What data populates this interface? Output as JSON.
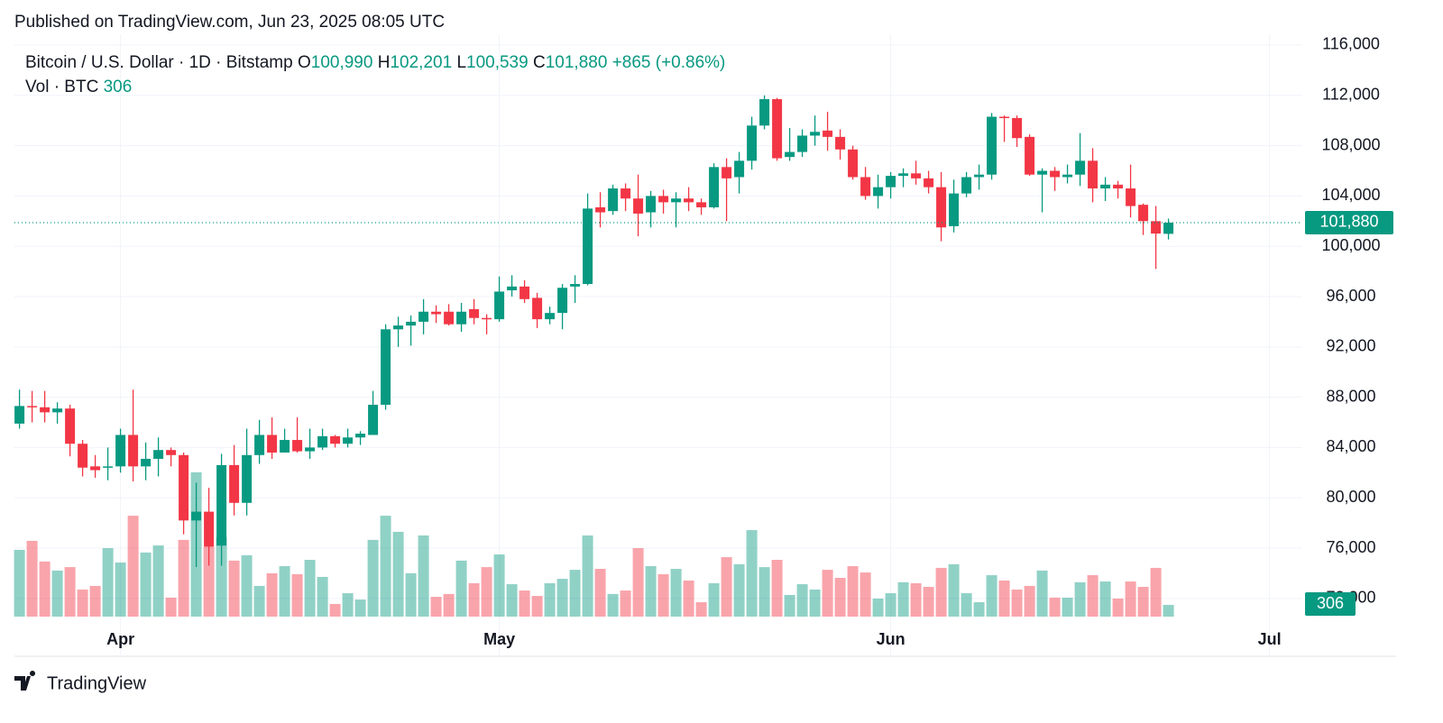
{
  "header": {
    "published": "Published on TradingView.com, Jun 23, 2025 08:05 UTC",
    "brand": "TradingView"
  },
  "chart_data": {
    "type": "candlestick",
    "title": "Bitcoin / U.S. Dollar · 1D · Bitstamp",
    "open_prefix": "O",
    "high_prefix": "H",
    "low_prefix": "L",
    "close_prefix": "C",
    "last_labels": {
      "open": "100,990",
      "high": "102,201",
      "low": "100,539",
      "close": "101,880",
      "change": "+865 (+0.86%)"
    },
    "volume_title": "Vol · BTC",
    "volume_label": "306",
    "up_color": "#089981",
    "down_color": "#f23645",
    "open": [
      85900,
      87300,
      87200,
      86800,
      87100,
      84300,
      82500,
      82400,
      82500,
      85000,
      82500,
      83100,
      83800,
      83400,
      78200,
      78900,
      76200,
      82600,
      79600,
      83400,
      85000,
      83600,
      84600,
      83700,
      84000,
      84900,
      84300,
      84800,
      85000,
      87400,
      93400,
      93700,
      94000,
      94800,
      94800,
      93800,
      95000,
      94300,
      94200,
      96500,
      96800,
      95900,
      94200,
      94700,
      96800,
      97000,
      103100,
      102800,
      104600,
      103800,
      102700,
      104000,
      103500,
      103800,
      103500,
      103100,
      106300,
      105500,
      106800,
      109600,
      111700,
      107100,
      107500,
      108800,
      109200,
      108700,
      107700,
      105500,
      104000,
      104700,
      105600,
      105800,
      105400,
      104700,
      101600,
      104200,
      105500,
      105700,
      110300,
      110200,
      108700,
      105700,
      106000,
      105500,
      105700,
      106800,
      104600,
      104900,
      104600,
      103300,
      102000,
      100990
    ],
    "high": [
      88600,
      88500,
      88500,
      87600,
      87400,
      84600,
      83400,
      84000,
      85500,
      88600,
      84400,
      84800,
      84000,
      83600,
      81200,
      80800,
      83500,
      84200,
      85500,
      86200,
      86400,
      85500,
      86400,
      85500,
      85500,
      85000,
      85500,
      85300,
      88500,
      93800,
      94400,
      94500,
      95800,
      95300,
      95400,
      95500,
      95800,
      94600,
      97600,
      97700,
      97300,
      96300,
      95200,
      97000,
      97700,
      104200,
      104300,
      104900,
      105000,
      105700,
      104400,
      104500,
      104300,
      104700,
      103800,
      106600,
      107000,
      107500,
      110300,
      112000,
      111800,
      109400,
      109300,
      110400,
      110700,
      109300,
      108000,
      106300,
      105700,
      105900,
      106200,
      106800,
      106000,
      105900,
      105300,
      105900,
      106500,
      110600,
      110400,
      110400,
      108900,
      106200,
      106300,
      106500,
      109000,
      107800,
      105500,
      105200,
      106500,
      103400,
      103200,
      102201
    ],
    "low": [
      85500,
      86000,
      86000,
      85900,
      83300,
      81700,
      81600,
      81400,
      82000,
      81300,
      81400,
      81700,
      82500,
      77100,
      74500,
      74600,
      74600,
      78600,
      78600,
      82700,
      83100,
      83700,
      83600,
      83100,
      83800,
      84000,
      84000,
      84200,
      85000,
      87000,
      92000,
      92100,
      93000,
      93900,
      93700,
      93200,
      93800,
      93000,
      94000,
      96000,
      95500,
      93500,
      93800,
      93400,
      95500,
      96900,
      101500,
      102500,
      102800,
      100800,
      101500,
      102600,
      101500,
      102800,
      102500,
      103000,
      102000,
      104200,
      106100,
      109300,
      106800,
      106800,
      107100,
      108000,
      107600,
      106900,
      105300,
      103700,
      103000,
      103800,
      104700,
      104900,
      104200,
      100400,
      101100,
      103900,
      104500,
      105300,
      108300,
      107900,
      105600,
      102700,
      104400,
      105000,
      104800,
      103500,
      103600,
      103800,
      102300,
      100900,
      98200,
      100539
    ],
    "close": [
      87300,
      87200,
      86800,
      87100,
      84300,
      82400,
      82200,
      82500,
      85000,
      82500,
      83100,
      83800,
      83400,
      78200,
      78900,
      76100,
      82600,
      79600,
      83400,
      85000,
      83600,
      84600,
      83700,
      84000,
      84900,
      84300,
      84800,
      85100,
      87400,
      93400,
      93700,
      94000,
      94800,
      94600,
      93800,
      94800,
      94300,
      94200,
      96400,
      96800,
      95800,
      94200,
      94700,
      96700,
      97000,
      103000,
      102700,
      104600,
      103800,
      102600,
      104000,
      103500,
      103800,
      103500,
      103100,
      106300,
      105400,
      106800,
      109600,
      111700,
      107000,
      107500,
      108800,
      109100,
      108700,
      107700,
      105500,
      104000,
      104700,
      105600,
      105800,
      105400,
      104700,
      101500,
      104200,
      105500,
      105700,
      110300,
      110200,
      108600,
      105700,
      106000,
      105500,
      105700,
      106800,
      104600,
      104900,
      104600,
      103200,
      102000,
      101015,
      101880
    ],
    "volume": [
      1740,
      1975,
      1435,
      1200,
      1290,
      705,
      800,
      1785,
      1410,
      2630,
      1670,
      1855,
      495,
      2000,
      3760,
      1810,
      2070,
      1460,
      1600,
      800,
      1130,
      1315,
      1105,
      1480,
      1035,
      330,
      610,
      445,
      2000,
      2630,
      2210,
      1130,
      2115,
      515,
      590,
      1460,
      870,
      1290,
      1620,
      845,
      680,
      540,
      870,
      985,
      1220,
      2115,
      1245,
      590,
      680,
      1785,
      1315,
      1105,
      1245,
      940,
      375,
      870,
      1550,
      1365,
      2255,
      1290,
      1480,
      565,
      845,
      705,
      1220,
      1010,
      1315,
      1150,
      470,
      610,
      895,
      870,
      775,
      1270,
      1365,
      610,
      375,
      1080,
      940,
      705,
      800,
      1200,
      495,
      495,
      895,
      1080,
      915,
      470,
      915,
      775,
      1270,
      306
    ],
    "ylim": [
      67400,
      116860
    ],
    "yticks": [
      {
        "value": 72000,
        "label": "72,000"
      },
      {
        "value": 76000,
        "label": "76,000"
      },
      {
        "value": 80000,
        "label": "80,000"
      },
      {
        "value": 84000,
        "label": "84,000"
      },
      {
        "value": 88000,
        "label": "88,000"
      },
      {
        "value": 92000,
        "label": "92,000"
      },
      {
        "value": 96000,
        "label": "96,000"
      },
      {
        "value": 100000,
        "label": "100,000"
      },
      {
        "value": 104000,
        "label": "104,000"
      },
      {
        "value": 108000,
        "label": "108,000"
      },
      {
        "value": 112000,
        "label": "112,000"
      },
      {
        "value": 116000,
        "label": "116,000"
      }
    ],
    "volume_ylim": [
      0,
      3900
    ],
    "xlim": [
      -0.4,
      101.6
    ],
    "xticks": [
      {
        "value": 8,
        "label": "Apr"
      },
      {
        "value": 38,
        "label": "May"
      },
      {
        "value": 69,
        "label": "Jun"
      },
      {
        "value": 99,
        "label": "Jul"
      }
    ],
    "grid": true
  }
}
